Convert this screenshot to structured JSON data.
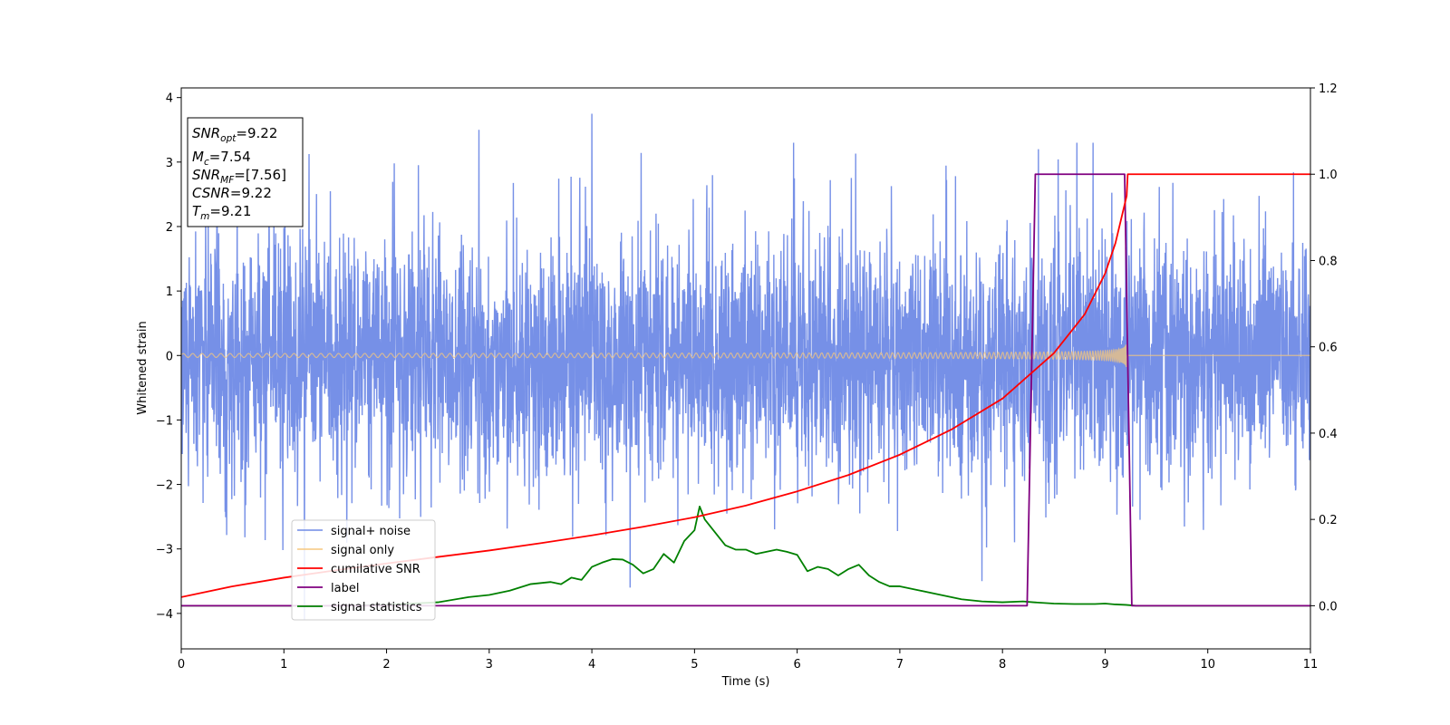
{
  "chart_data": {
    "type": "line",
    "xlabel": "Time (s)",
    "ylabel": "Whitened strain",
    "xlim": [
      0,
      11
    ],
    "ylim_left": [
      -4.55,
      4.15
    ],
    "ylim_right": [
      -0.1,
      1.2
    ],
    "x_ticks": [
      "0",
      "1",
      "2",
      "3",
      "4",
      "5",
      "6",
      "7",
      "8",
      "9",
      "10",
      "11"
    ],
    "y_left_ticks": [
      "4",
      "3",
      "2",
      "1",
      "0",
      "−1",
      "−2",
      "−3",
      "−4"
    ],
    "y_right_ticks": [
      "1.2",
      "1.0",
      "0.8",
      "0.6",
      "0.4",
      "0.2",
      "0.0"
    ],
    "legend_position": "lower-left",
    "info_box": {
      "snr_opt_base": "SNR",
      "snr_opt_sub": "opt",
      "snr_opt_value": "=9.22",
      "mc_base": "M",
      "mc_sub": "c",
      "mc_value": "=7.54",
      "snr_mf_base": "SNR",
      "snr_mf_sub": "MF",
      "snr_mf_value": "=[7.56]",
      "csnr": "CSNR",
      "csnr_value": "=9.22",
      "tm_base": "T",
      "tm_sub": "m",
      "tm_value": "=9.21"
    },
    "series": [
      {
        "name": "signal+ noise",
        "axis": "left",
        "color": "#6f8ae6",
        "description_values": {
          "noise_std": 0.95,
          "peak_outliers": [
            [
              1.2,
              -4.1
            ],
            [
              4.0,
              3.75
            ],
            [
              2.9,
              3.5
            ],
            [
              8.35,
              3.2
            ],
            [
              7.8,
              -3.5
            ]
          ]
        }
      },
      {
        "name": "signal only",
        "axis": "left",
        "color": "#f5c77e",
        "chirp": {
          "start_time": 0,
          "merger_time": 9.21,
          "start_amplitude": 0.03,
          "end_amplitude": 0.7
        }
      },
      {
        "name": "cumilative SNR",
        "axis": "right",
        "color": "#ff0000",
        "x": [
          0,
          0.5,
          1,
          1.5,
          2,
          2.5,
          3,
          3.5,
          4,
          4.5,
          5,
          5.5,
          6,
          6.5,
          7,
          7.5,
          8,
          8.5,
          8.8,
          9.0,
          9.1,
          9.21,
          9.22,
          11
        ],
        "values": [
          0.02,
          0.045,
          0.065,
          0.082,
          0.098,
          0.113,
          0.128,
          0.145,
          0.163,
          0.183,
          0.205,
          0.232,
          0.265,
          0.303,
          0.35,
          0.408,
          0.48,
          0.585,
          0.675,
          0.77,
          0.84,
          0.95,
          1.0,
          1.0
        ]
      },
      {
        "name": "label",
        "axis": "right",
        "color": "#800080",
        "x": [
          0,
          8.24,
          8.32,
          9.19,
          9.26,
          11
        ],
        "values": [
          0.0,
          0.0,
          1.0,
          1.0,
          0.0,
          0.0
        ]
      },
      {
        "name": "signal statistics",
        "axis": "right",
        "color": "#008000",
        "x": [
          0,
          0.5,
          1,
          1.5,
          2,
          2.5,
          2.8,
          3.0,
          3.1,
          3.2,
          3.4,
          3.6,
          3.7,
          3.8,
          3.9,
          4.0,
          4.1,
          4.2,
          4.3,
          4.4,
          4.5,
          4.6,
          4.7,
          4.8,
          4.9,
          5.0,
          5.05,
          5.1,
          5.2,
          5.3,
          5.4,
          5.5,
          5.6,
          5.7,
          5.8,
          5.9,
          6.0,
          6.1,
          6.2,
          6.3,
          6.4,
          6.5,
          6.6,
          6.7,
          6.8,
          6.9,
          7.0,
          7.2,
          7.4,
          7.6,
          7.8,
          8.0,
          8.2,
          8.3,
          8.5,
          8.7,
          8.9,
          9.0,
          9.1,
          9.2,
          9.3,
          9.5,
          10,
          11
        ],
        "values": [
          0.0,
          0.0,
          0.0,
          0.0,
          0.002,
          0.008,
          0.02,
          0.025,
          0.03,
          0.035,
          0.05,
          0.055,
          0.05,
          0.065,
          0.06,
          0.09,
          0.1,
          0.108,
          0.107,
          0.095,
          0.075,
          0.085,
          0.12,
          0.1,
          0.15,
          0.175,
          0.23,
          0.2,
          0.17,
          0.14,
          0.13,
          0.13,
          0.12,
          0.125,
          0.13,
          0.125,
          0.118,
          0.08,
          0.09,
          0.085,
          0.07,
          0.085,
          0.095,
          0.07,
          0.055,
          0.045,
          0.045,
          0.035,
          0.025,
          0.015,
          0.01,
          0.008,
          0.01,
          0.008,
          0.005,
          0.004,
          0.004,
          0.005,
          0.003,
          0.002,
          0.0,
          0.0,
          0.0,
          0.0
        ]
      }
    ]
  }
}
